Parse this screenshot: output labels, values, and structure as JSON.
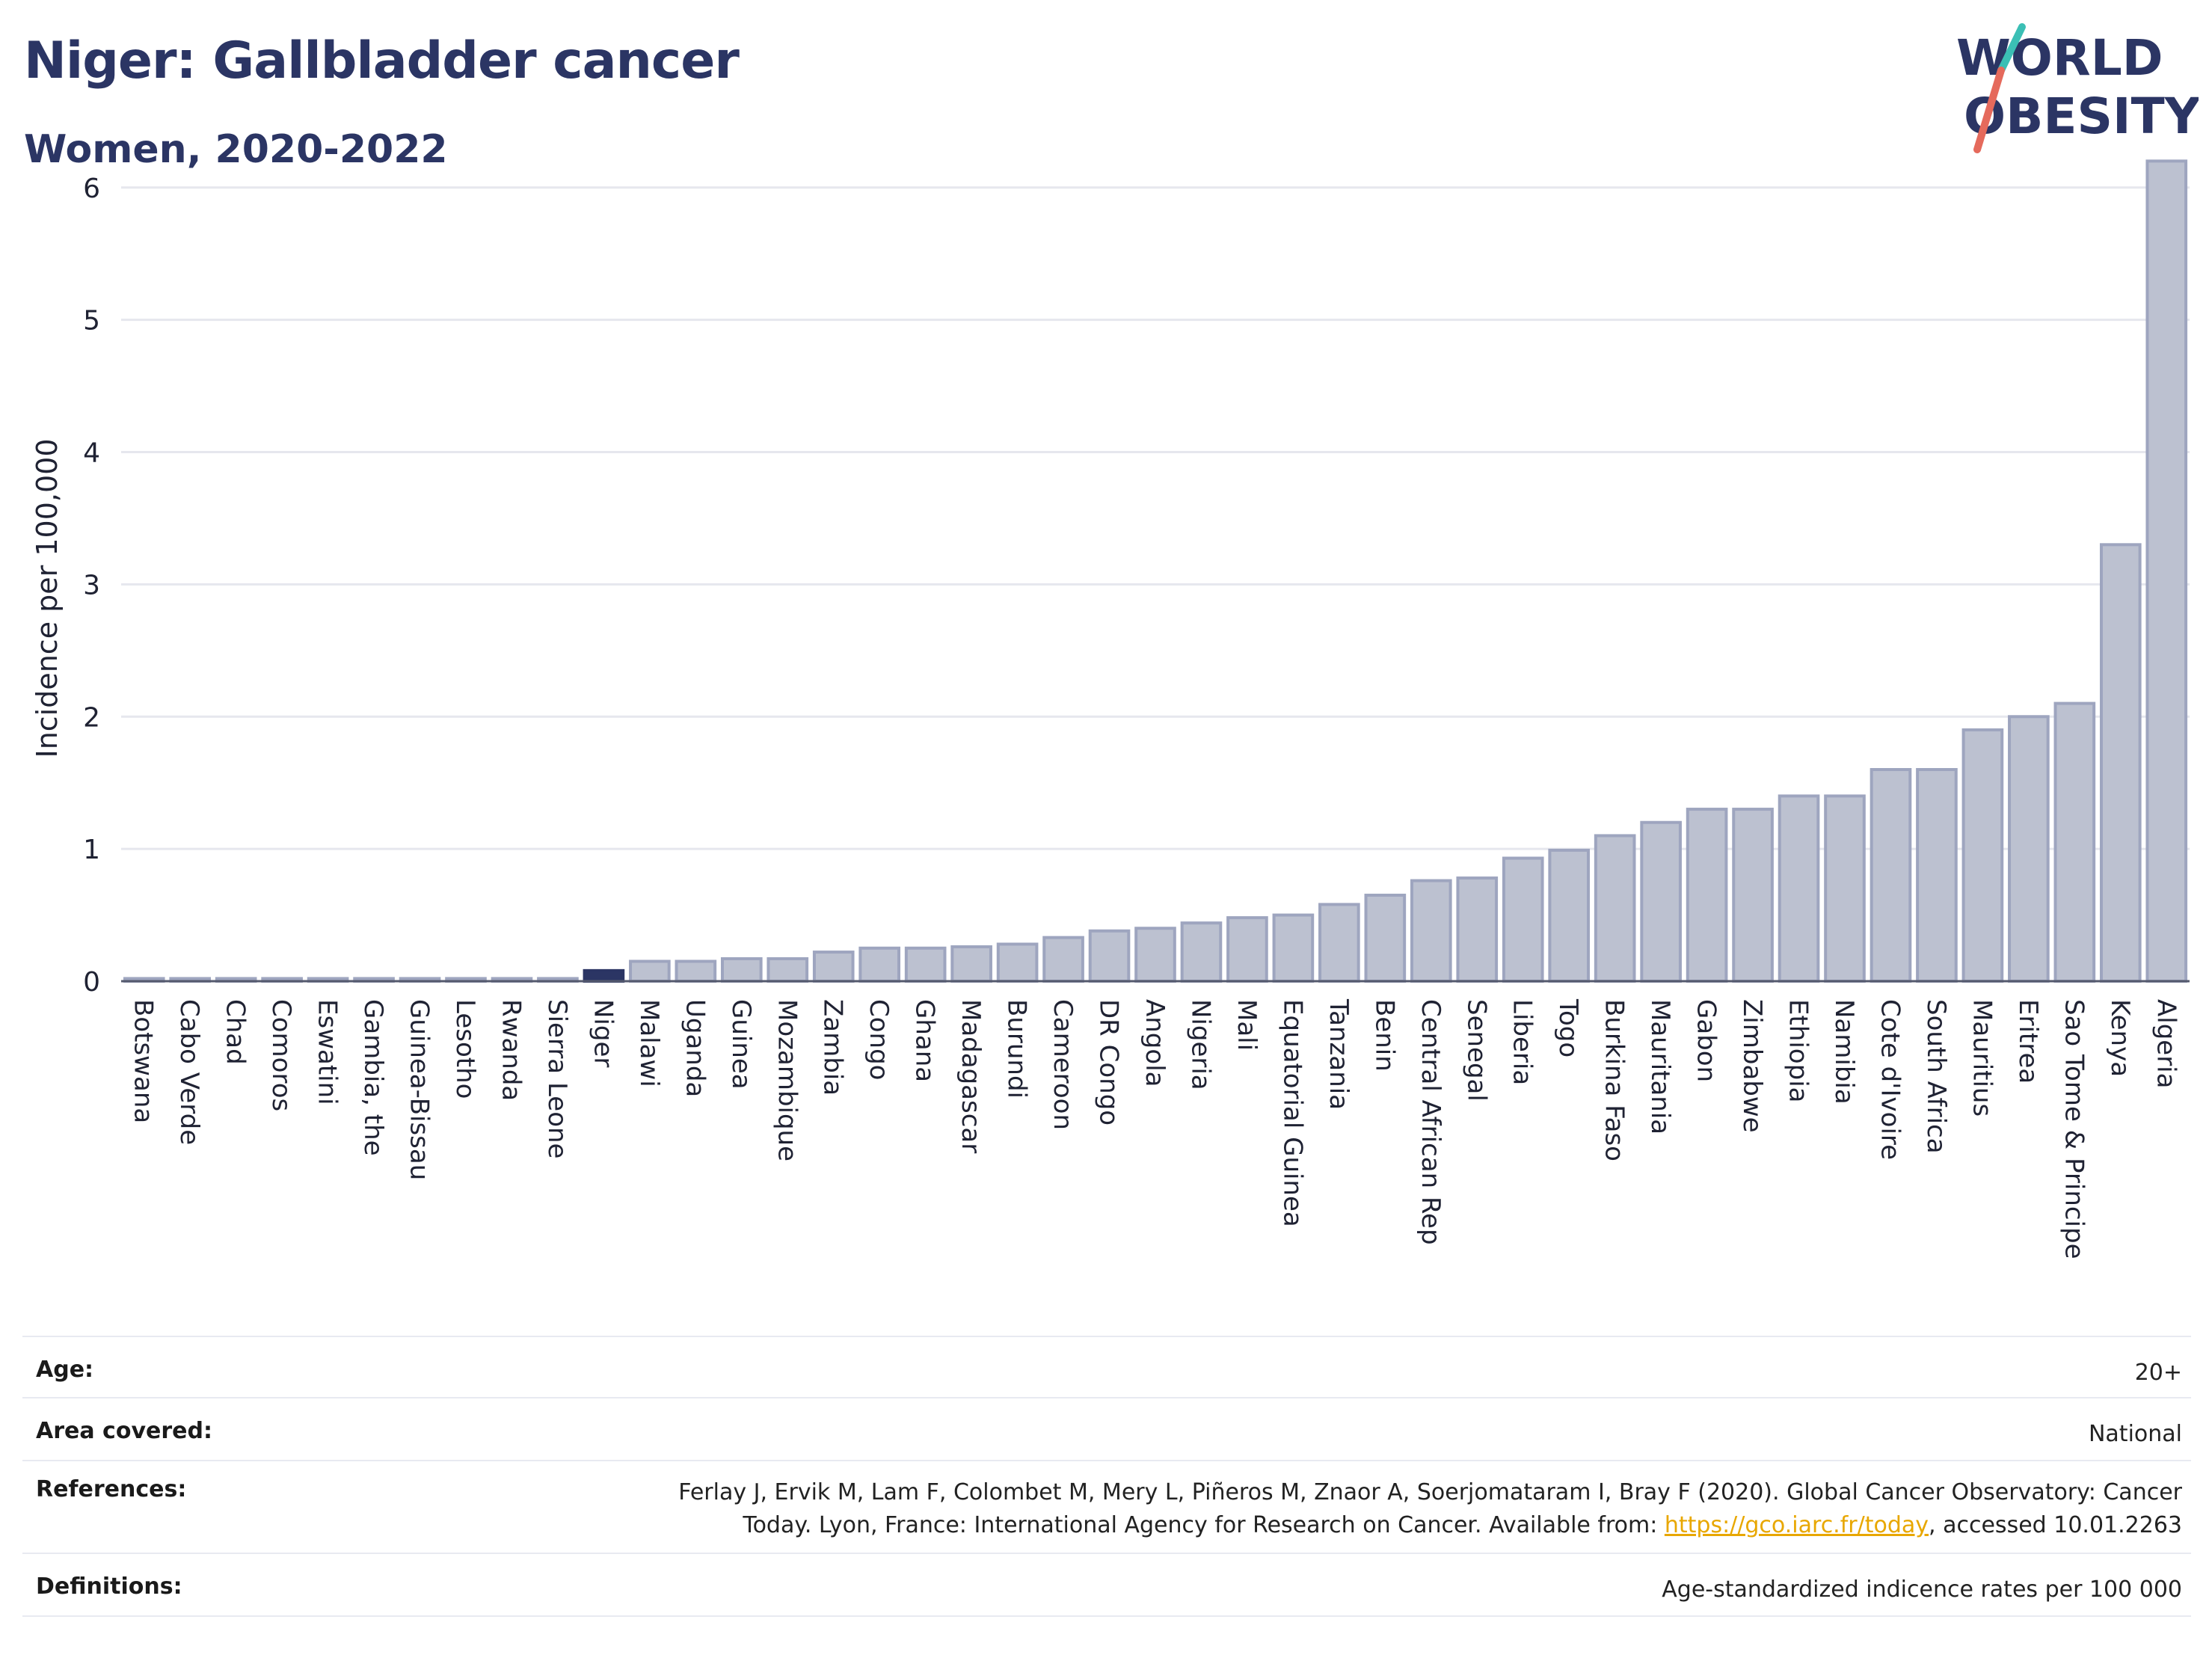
{
  "title": "Niger: Gallbladder cancer",
  "subtitle": "Women, 2020-2022",
  "logo": {
    "line1": "WORLD",
    "line2": "OBESITY",
    "accent_teal": "#3bbfb5",
    "accent_red": "#e56a5c",
    "text_color": "#2b3564"
  },
  "colors": {
    "bar_default": "#bcc1d0",
    "bar_default_stroke": "#9ea5bf",
    "bar_highlight": "#2b3564",
    "gridline": "#e6e7ee",
    "axis": "#555a6e"
  },
  "chart_data": {
    "type": "bar",
    "title": "Niger: Gallbladder cancer",
    "subtitle": "Women, 2020-2022",
    "xlabel": "",
    "ylabel": "Incidence per 100,000",
    "ylim": [
      0,
      6.4
    ],
    "yticks": [
      0,
      1,
      2,
      3,
      4,
      5,
      6
    ],
    "grid": true,
    "highlight": "Niger",
    "categories": [
      "Botswana",
      "Cabo Verde",
      "Chad",
      "Comoros",
      "Eswatini",
      "Gambia, the",
      "Guinea-Bissau",
      "Lesotho",
      "Rwanda",
      "Sierra Leone",
      "Niger",
      "Malawi",
      "Uganda",
      "Guinea",
      "Mozambique",
      "Zambia",
      "Congo",
      "Ghana",
      "Madagascar",
      "Burundi",
      "Cameroon",
      "DR Congo",
      "Angola",
      "Nigeria",
      "Mali",
      "Equatorial Guinea",
      "Tanzania",
      "Benin",
      "Central African Rep",
      "Senegal",
      "Liberia",
      "Togo",
      "Burkina Faso",
      "Mauritania",
      "Gabon",
      "Zimbabwe",
      "Ethiopia",
      "Namibia",
      "Cote d'Ivoire",
      "South Africa",
      "Mauritius",
      "Eritrea",
      "Sao Tome & Principe",
      "Kenya",
      "Algeria"
    ],
    "values": [
      0.02,
      0.02,
      0.02,
      0.02,
      0.02,
      0.02,
      0.02,
      0.02,
      0.02,
      0.02,
      0.08,
      0.15,
      0.15,
      0.17,
      0.17,
      0.22,
      0.25,
      0.25,
      0.26,
      0.28,
      0.33,
      0.38,
      0.4,
      0.44,
      0.48,
      0.5,
      0.58,
      0.65,
      0.76,
      0.78,
      0.93,
      0.99,
      1.1,
      1.2,
      1.3,
      1.3,
      1.4,
      1.4,
      1.6,
      1.6,
      1.9,
      2.0,
      2.1,
      3.3,
      6.2
    ]
  },
  "info": {
    "age_label": "Age:",
    "age_value": "20+",
    "area_label": "Area covered:",
    "area_value": "National",
    "references_label": "References:",
    "references_line1": "Ferlay J, Ervik M, Lam F, Colombet M, Mery L, Piñeros M, Znaor A, Soerjomataram I, Bray F (2020). Global Cancer Observatory: Cancer",
    "references_line2_pre": "Today. Lyon, France: International Agency for Research on Cancer. Available from: ",
    "references_link": "https://gco.iarc.fr/today",
    "references_line2_post": ", accessed 10.01.2263",
    "definitions_label": "Definitions:",
    "definitions_value": "Age-standardized indicence rates per 100 000"
  }
}
